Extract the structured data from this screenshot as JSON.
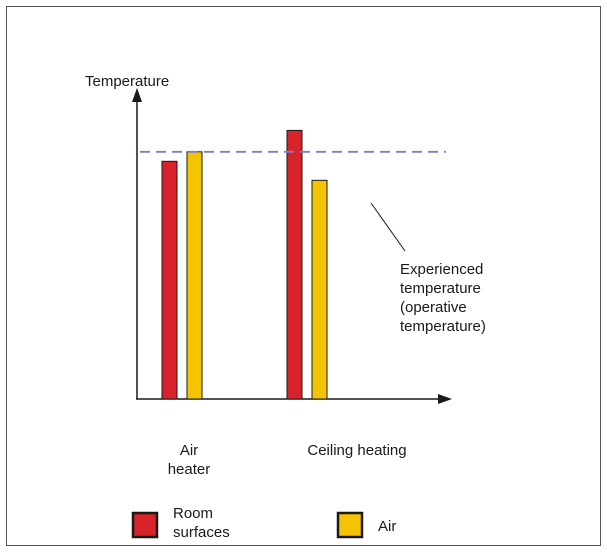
{
  "chart_data": {
    "type": "bar",
    "ylabel": "Temperature",
    "categories": [
      "Air heater",
      "Ceiling heating"
    ],
    "category_lines": [
      [
        "Air",
        "heater"
      ],
      [
        "Ceiling heating"
      ]
    ],
    "series": [
      {
        "name": "Room surfaces",
        "legend_lines": [
          "Room",
          "surfaces"
        ],
        "color": "#d8232a",
        "values": [
          100,
          113
        ]
      },
      {
        "name": "Air",
        "legend_lines": [
          "Air"
        ],
        "color": "#f5c400",
        "values": [
          104,
          92
        ]
      }
    ],
    "reference_line": {
      "value": 104,
      "color": "#7b7fc4",
      "style": "dashed",
      "label_lines": [
        "Experienced",
        "temperature",
        "(operative",
        "temperature)"
      ]
    },
    "ylim": [
      0,
      130
    ],
    "grid": false,
    "legend_position": "bottom"
  }
}
